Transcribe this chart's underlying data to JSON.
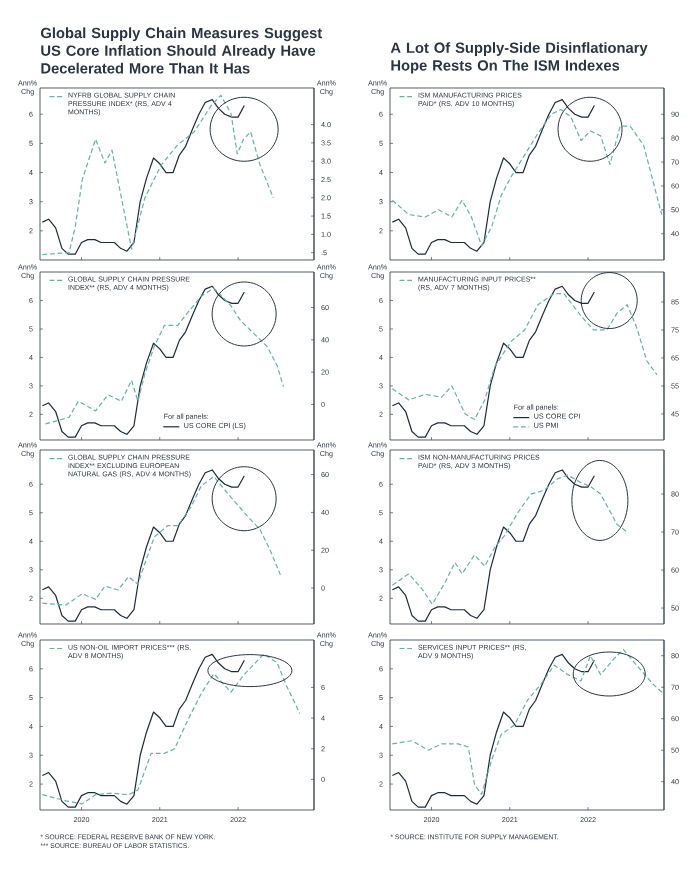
{
  "chart_data": [
    {
      "type": "line",
      "title": "Global Supply Chain Measures Suggest US Core Inflation Should Already Have Decelerated More Than It Has",
      "ylabel": "Ann% Chg",
      "y2label": "Ann% Chg",
      "tick_labels": "y",
      "x": [
        2020.0,
        2020.08,
        2020.17,
        2020.25,
        2020.33,
        2020.42,
        2020.5,
        2020.58,
        2020.67,
        2020.75,
        2020.83,
        2020.92,
        2021.0,
        2021.08,
        2021.17,
        2021.25,
        2021.33,
        2021.42,
        2021.5,
        2021.58,
        2021.67,
        2021.75,
        2021.83,
        2021.92,
        2022.0,
        2022.08,
        2022.17,
        2022.25,
        2022.33,
        2022.42,
        2022.5,
        2022.58
      ],
      "xlim": [
        2019.97,
        2023.47
      ],
      "xticks": [
        {
          "value": 2020.5,
          "label": null
        },
        {
          "value": 2021.5,
          "label": null
        },
        {
          "value": 2022.5,
          "label": null
        }
      ],
      "ylim": [
        1.0,
        6.9
      ],
      "yticks": [
        2,
        3,
        4,
        5,
        6
      ],
      "y2lim": [
        0.3,
        5.0
      ],
      "y2ticks": [
        {
          "value": 0.5,
          "label": ".5"
        },
        {
          "value": 1,
          "label": "1.0"
        },
        {
          "value": 1.5,
          "label": "1.5"
        },
        {
          "value": 2,
          "label": "2.0"
        },
        {
          "value": 2.5,
          "label": "2.5"
        },
        {
          "value": 3,
          "label": "3.0"
        },
        {
          "value": 3.5,
          "label": "3.5"
        },
        {
          "value": 4,
          "label": "4.0"
        }
      ],
      "series": [
        {
          "color": "#1c2b39",
          "line_style": "solid",
          "values": [
            2.3,
            2.4,
            2.1,
            1.4,
            1.2,
            1.2,
            1.6,
            1.7,
            1.7,
            1.6,
            1.6,
            1.6,
            1.4,
            1.3,
            1.6,
            3.0,
            3.8,
            4.5,
            4.3,
            4.0,
            4.0,
            4.6,
            4.9,
            5.5,
            6.0,
            6.4,
            6.5,
            6.2,
            6.0,
            5.9,
            5.9,
            6.3
          ]
        },
        {
          "name": "NYFRB GLOBAL SUPPLY CHAIN PRESSURE INDEX* (RS, ADV 4 MONTHS)",
          "color": "#6aaea6",
          "line_style": "dashed",
          "axis": "y2",
          "x": [
            2020.0,
            2020.34,
            2020.42,
            2020.51,
            2020.68,
            2020.8,
            2020.89,
            2021.01,
            2021.14,
            2021.31,
            2021.52,
            2021.73,
            2021.94,
            2022.15,
            2022.28,
            2022.41,
            2022.49,
            2022.57,
            2022.66,
            2022.78,
            2022.95
          ],
          "values": [
            0.45,
            0.5,
            1.2,
            2.5,
            3.6,
            2.95,
            3.3,
            2.0,
            0.6,
            2.0,
            2.9,
            3.45,
            3.8,
            4.5,
            4.8,
            4.3,
            3.2,
            3.6,
            3.8,
            2.9,
            2.0
          ]
        }
      ]
    },
    {
      "type": "line",
      "ylabel": "Ann% Chg",
      "y2label": "Ann% Chg",
      "tick_labels": "y",
      "legend": "bottom right",
      "legend_title": "For all panels:",
      "x": [
        2020.0,
        2020.08,
        2020.17,
        2020.25,
        2020.33,
        2020.42,
        2020.5,
        2020.58,
        2020.67,
        2020.75,
        2020.83,
        2020.92,
        2021.0,
        2021.08,
        2021.17,
        2021.25,
        2021.33,
        2021.42,
        2021.5,
        2021.58,
        2021.67,
        2021.75,
        2021.83,
        2021.92,
        2022.0,
        2022.08,
        2022.17,
        2022.25,
        2022.33,
        2022.42,
        2022.5,
        2022.58
      ],
      "xlim": [
        2019.97,
        2023.47
      ],
      "xticks": [
        {
          "value": 2020.5,
          "label": null
        },
        {
          "value": 2021.5,
          "label": null
        },
        {
          "value": 2022.5,
          "label": null
        }
      ],
      "ylim": [
        1.1,
        7.0
      ],
      "yticks": [
        2,
        3,
        4,
        5,
        6
      ],
      "y2lim": [
        -22,
        82
      ],
      "y2ticks": [
        0,
        20,
        40,
        60
      ],
      "series": [
        {
          "name": "US CORE CPI (LS)",
          "color": "#1c2b39",
          "line_style": "solid",
          "values": [
            2.3,
            2.4,
            2.1,
            1.4,
            1.2,
            1.2,
            1.6,
            1.7,
            1.7,
            1.6,
            1.6,
            1.6,
            1.4,
            1.3,
            1.6,
            3.0,
            3.8,
            4.5,
            4.3,
            4.0,
            4.0,
            4.6,
            4.9,
            5.5,
            6.0,
            6.4,
            6.5,
            6.2,
            6.0,
            5.9,
            5.9,
            6.3
          ]
        },
        {
          "name": "GLOBAL SUPPLY CHAIN PRESSURE INDEX** (RS, ADV 4 MONTHS)",
          "color": "#6aaea6",
          "line_style": "dashed",
          "axis": "y2",
          "x": [
            2020.04,
            2020.34,
            2020.46,
            2020.68,
            2020.84,
            2021.01,
            2021.14,
            2021.22,
            2021.31,
            2021.43,
            2021.56,
            2021.73,
            2021.86,
            2022.03,
            2022.19,
            2022.41,
            2022.53,
            2022.7,
            2022.87,
            2023.0,
            2023.08
          ],
          "values": [
            -12,
            -8,
            2,
            -4,
            6,
            2,
            15,
            2,
            19,
            36,
            49,
            49,
            57,
            67,
            72,
            61,
            52,
            44,
            36,
            24,
            11
          ]
        }
      ]
    },
    {
      "type": "line",
      "ylabel": "Ann% Chg",
      "y2label": "Ann% Chg",
      "tick_labels": "y",
      "x": [
        2020.0,
        2020.08,
        2020.17,
        2020.25,
        2020.33,
        2020.42,
        2020.5,
        2020.58,
        2020.67,
        2020.75,
        2020.83,
        2020.92,
        2021.0,
        2021.08,
        2021.17,
        2021.25,
        2021.33,
        2021.42,
        2021.5,
        2021.58,
        2021.67,
        2021.75,
        2021.83,
        2021.92,
        2022.0,
        2022.08,
        2022.17,
        2022.25,
        2022.33,
        2022.42,
        2022.5,
        2022.58
      ],
      "xlim": [
        2019.97,
        2023.47
      ],
      "xticks": [
        {
          "value": 2020.5,
          "label": null
        },
        {
          "value": 2021.5,
          "label": null
        },
        {
          "value": 2022.5,
          "label": null
        }
      ],
      "ylim": [
        1.1,
        7.2
      ],
      "yticks": [
        2,
        3,
        4,
        5,
        6
      ],
      "y2lim": [
        -19,
        73
      ],
      "y2ticks": [
        0,
        20,
        40,
        60
      ],
      "series": [
        {
          "color": "#1c2b39",
          "line_style": "solid",
          "values": [
            2.3,
            2.4,
            2.1,
            1.4,
            1.2,
            1.2,
            1.6,
            1.7,
            1.7,
            1.6,
            1.6,
            1.6,
            1.4,
            1.3,
            1.6,
            3.0,
            3.8,
            4.5,
            4.3,
            4.0,
            4.0,
            4.6,
            4.9,
            5.5,
            6.0,
            6.4,
            6.5,
            6.2,
            6.0,
            5.9,
            5.9,
            6.3
          ]
        },
        {
          "name": "GLOBAL SUPPLY CHAIN PRESSURE INDEX** EXCLUDING EUROPEAN NATURAL GAS (RS, ADV 4 MONTHS)",
          "color": "#6aaea6",
          "line_style": "dashed",
          "axis": "y2",
          "x": [
            2020.0,
            2020.3,
            2020.51,
            2020.68,
            2020.8,
            2020.97,
            2021.1,
            2021.22,
            2021.31,
            2021.43,
            2021.6,
            2021.73,
            2021.9,
            2022.03,
            2022.19,
            2022.41,
            2022.62,
            2022.78,
            2022.91,
            2023.04
          ],
          "values": [
            -8,
            -9,
            -3,
            -6,
            1,
            -1,
            6,
            2,
            13,
            27,
            33,
            33,
            43,
            54,
            59,
            48,
            38,
            31,
            20,
            7
          ]
        }
      ]
    },
    {
      "type": "line",
      "ylabel": "Ann% Chg",
      "y2label": "Ann% Chg",
      "annotations": [
        "* SOURCE: FEDERAL RESERVE BANK OF NEW YORK.",
        "*** SOURCE: BUREAU OF LABOR STATISTICS."
      ],
      "x": [
        2020.0,
        2020.08,
        2020.17,
        2020.25,
        2020.33,
        2020.42,
        2020.5,
        2020.58,
        2020.67,
        2020.75,
        2020.83,
        2020.92,
        2021.0,
        2021.08,
        2021.17,
        2021.25,
        2021.33,
        2021.42,
        2021.5,
        2021.58,
        2021.67,
        2021.75,
        2021.83,
        2021.92,
        2022.0,
        2022.08,
        2022.17,
        2022.25,
        2022.33,
        2022.42,
        2022.5,
        2022.58
      ],
      "xlim": [
        2019.97,
        2023.47
      ],
      "xticks": [
        {
          "value": 2020.5,
          "label": "2020"
        },
        {
          "value": 2021.5,
          "label": "2021"
        },
        {
          "value": 2022.5,
          "label": "2022"
        }
      ],
      "ylim": [
        1.1,
        7.0
      ],
      "yticks": [
        2,
        3,
        4,
        5,
        6
      ],
      "y2lim": [
        -2,
        9.1
      ],
      "y2ticks": [
        0,
        2,
        4,
        6
      ],
      "series": [
        {
          "color": "#1c2b39",
          "line_style": "solid",
          "values": [
            2.3,
            2.4,
            2.1,
            1.4,
            1.2,
            1.2,
            1.6,
            1.7,
            1.7,
            1.6,
            1.6,
            1.6,
            1.4,
            1.3,
            1.6,
            3.0,
            3.8,
            4.5,
            4.3,
            4.0,
            4.0,
            4.6,
            4.9,
            5.5,
            6.0,
            6.4,
            6.5,
            6.2,
            6.0,
            5.9,
            5.9,
            6.3
          ]
        },
        {
          "name": "US NON-OIL IMPORT PRICES*** (RS, ADV 8 MONTHS)",
          "color": "#6aaea6",
          "line_style": "dashed",
          "axis": "y2",
          "x": [
            2020.0,
            2020.3,
            2020.51,
            2020.68,
            2020.89,
            2021.1,
            2021.22,
            2021.39,
            2021.56,
            2021.69,
            2021.86,
            2022.03,
            2022.19,
            2022.41,
            2022.57,
            2022.83,
            2023.0,
            2023.12,
            2023.29
          ],
          "values": [
            -1.0,
            -1.4,
            -1.6,
            -1.0,
            -0.9,
            -1.0,
            -0.7,
            1.7,
            1.7,
            2.0,
            3.9,
            5.6,
            6.9,
            5.7,
            6.8,
            8.2,
            7.6,
            6.1,
            4.3
          ]
        }
      ]
    },
    {
      "type": "line",
      "title": "A Lot Of Supply-Side Disinflationary Hope Rests On The ISM Indexes",
      "ylabel": "Ann% Chg",
      "tick_labels": "y",
      "x": [
        2020.0,
        2020.08,
        2020.17,
        2020.25,
        2020.33,
        2020.42,
        2020.5,
        2020.58,
        2020.67,
        2020.75,
        2020.83,
        2020.92,
        2021.0,
        2021.08,
        2021.17,
        2021.25,
        2021.33,
        2021.42,
        2021.5,
        2021.58,
        2021.67,
        2021.75,
        2021.83,
        2021.92,
        2022.0,
        2022.08,
        2022.17,
        2022.25,
        2022.33,
        2022.42,
        2022.5,
        2022.58
      ],
      "xlim": [
        2019.97,
        2023.47
      ],
      "xticks": [
        {
          "value": 2020.5,
          "label": null
        },
        {
          "value": 2021.5,
          "label": null
        },
        {
          "value": 2022.5,
          "label": null
        }
      ],
      "ylim": [
        1.0,
        6.9
      ],
      "yticks": [
        2,
        3,
        4,
        5,
        6
      ],
      "y2lim": [
        29,
        101
      ],
      "y2ticks": [
        40,
        50,
        60,
        70,
        80,
        90
      ],
      "series": [
        {
          "color": "#1c2b39",
          "line_style": "solid",
          "values": [
            2.3,
            2.4,
            2.1,
            1.4,
            1.2,
            1.2,
            1.6,
            1.7,
            1.7,
            1.6,
            1.6,
            1.6,
            1.4,
            1.3,
            1.6,
            3.0,
            3.8,
            4.5,
            4.3,
            4.0,
            4.0,
            4.6,
            4.9,
            5.5,
            6.0,
            6.4,
            6.5,
            6.2,
            6.0,
            5.9,
            5.9,
            6.3
          ]
        },
        {
          "name": "ISM MANUFACTURING PRICES PAID* (RS, ADV 10 MONTHS)",
          "color": "#6aaea6",
          "line_style": "dashed",
          "axis": "y2",
          "x": [
            2020.0,
            2020.21,
            2020.42,
            2020.59,
            2020.76,
            2020.89,
            2021.01,
            2021.14,
            2021.27,
            2021.39,
            2021.52,
            2021.69,
            2021.86,
            2022.03,
            2022.15,
            2022.28,
            2022.41,
            2022.53,
            2022.66,
            2022.78,
            2022.91,
            2023.04,
            2023.21,
            2023.33,
            2023.44
          ],
          "values": [
            54,
            48,
            47,
            50,
            47,
            54,
            47,
            35,
            43,
            56,
            64,
            73,
            82,
            90,
            92,
            89,
            79,
            83,
            81,
            69,
            85,
            85,
            77,
            62,
            48
          ]
        }
      ]
    },
    {
      "type": "line",
      "ylabel": "Ann% Chg",
      "tick_labels": "y",
      "legend": "bottom right",
      "legend_title": "For all panels:",
      "annotations": [
        "US PMI"
      ],
      "x": [
        2020.0,
        2020.08,
        2020.17,
        2020.25,
        2020.33,
        2020.42,
        2020.5,
        2020.58,
        2020.67,
        2020.75,
        2020.83,
        2020.92,
        2021.0,
        2021.08,
        2021.17,
        2021.25,
        2021.33,
        2021.42,
        2021.5,
        2021.58,
        2021.67,
        2021.75,
        2021.83,
        2021.92,
        2022.0,
        2022.08,
        2022.17,
        2022.25,
        2022.33,
        2022.42,
        2022.5,
        2022.58
      ],
      "xlim": [
        2019.97,
        2023.47
      ],
      "xticks": [
        {
          "value": 2020.5,
          "label": null
        },
        {
          "value": 2021.5,
          "label": null
        },
        {
          "value": 2022.5,
          "label": null
        }
      ],
      "ylim": [
        1.1,
        7.0
      ],
      "yticks": [
        2,
        3,
        4,
        5,
        6
      ],
      "y2lim": [
        35.7,
        95.7
      ],
      "y2ticks": [
        45,
        55,
        65,
        75,
        85
      ],
      "series": [
        {
          "name": "US CORE CPI",
          "color": "#1c2b39",
          "line_style": "solid",
          "values": [
            2.3,
            2.4,
            2.1,
            1.4,
            1.2,
            1.2,
            1.6,
            1.7,
            1.7,
            1.6,
            1.6,
            1.6,
            1.4,
            1.3,
            1.6,
            3.0,
            3.8,
            4.5,
            4.3,
            4.0,
            4.0,
            4.6,
            4.9,
            5.5,
            6.0,
            6.4,
            6.5,
            6.2,
            6.0,
            5.9,
            5.9,
            6.3
          ]
        },
        {
          "name": "MANUFACTURING INPUT PRICES** (RS, ADV 7 MONTHS)",
          "color": "#6aaea6",
          "line_style": "dashed",
          "axis": "y2",
          "x": [
            2020.0,
            2020.21,
            2020.42,
            2020.63,
            2020.76,
            2020.93,
            2021.05,
            2021.18,
            2021.31,
            2021.52,
            2021.69,
            2021.86,
            2022.07,
            2022.19,
            2022.41,
            2022.57,
            2022.74,
            2022.87,
            2023.0,
            2023.12,
            2023.25,
            2023.38
          ],
          "values": [
            54,
            50,
            52,
            51,
            55,
            45,
            43,
            50,
            62,
            71,
            75,
            84,
            88,
            88,
            80,
            75,
            75,
            81,
            84,
            76,
            64,
            59
          ]
        }
      ]
    },
    {
      "type": "line",
      "ylabel": "Ann% Chg",
      "tick_labels": "y",
      "x": [
        2020.0,
        2020.08,
        2020.17,
        2020.25,
        2020.33,
        2020.42,
        2020.5,
        2020.58,
        2020.67,
        2020.75,
        2020.83,
        2020.92,
        2021.0,
        2021.08,
        2021.17,
        2021.25,
        2021.33,
        2021.42,
        2021.5,
        2021.58,
        2021.67,
        2021.75,
        2021.83,
        2021.92,
        2022.0,
        2022.08,
        2022.17,
        2022.25,
        2022.33,
        2022.42,
        2022.5,
        2022.58
      ],
      "xlim": [
        2019.97,
        2023.47
      ],
      "xticks": [
        {
          "value": 2020.5,
          "label": null
        },
        {
          "value": 2021.5,
          "label": null
        },
        {
          "value": 2022.5,
          "label": null
        }
      ],
      "ylim": [
        1.1,
        7.2
      ],
      "yticks": [
        2,
        3,
        4,
        5,
        6
      ],
      "y2lim": [
        45.8,
        91.6
      ],
      "y2ticks": [
        50,
        60,
        70,
        80
      ],
      "series": [
        {
          "color": "#1c2b39",
          "line_style": "solid",
          "values": [
            2.3,
            2.4,
            2.1,
            1.4,
            1.2,
            1.2,
            1.6,
            1.7,
            1.7,
            1.6,
            1.6,
            1.6,
            1.4,
            1.3,
            1.6,
            3.0,
            3.8,
            4.5,
            4.3,
            4.0,
            4.0,
            4.6,
            4.9,
            5.5,
            6.0,
            6.4,
            6.5,
            6.2,
            6.0,
            5.9,
            5.9,
            6.3
          ]
        },
        {
          "name": "ISM NON-MANUFACTURING PRICES PAID* (RS, ADV 3 MONTHS)",
          "color": "#6aaea6",
          "line_style": "dashed",
          "axis": "y2",
          "x": [
            2020.0,
            2020.21,
            2020.38,
            2020.51,
            2020.68,
            2020.8,
            2020.89,
            2021.05,
            2021.18,
            2021.31,
            2021.43,
            2021.6,
            2021.77,
            2021.94,
            2022.11,
            2022.24,
            2022.41,
            2022.53,
            2022.66,
            2022.74,
            2022.87,
            2023.0
          ],
          "values": [
            56,
            59,
            55,
            51,
            57,
            62,
            59,
            64,
            61,
            66,
            69,
            75,
            80,
            81,
            84,
            85,
            83,
            82,
            80,
            77,
            72,
            70
          ]
        }
      ]
    },
    {
      "type": "line",
      "ylabel": "Ann% Chg",
      "annotations": [
        "* SOURCE: INSTITUTE FOR SUPPLY MANAGEMENT."
      ],
      "x": [
        2020.0,
        2020.08,
        2020.17,
        2020.25,
        2020.33,
        2020.42,
        2020.5,
        2020.58,
        2020.67,
        2020.75,
        2020.83,
        2020.92,
        2021.0,
        2021.08,
        2021.17,
        2021.25,
        2021.33,
        2021.42,
        2021.5,
        2021.58,
        2021.67,
        2021.75,
        2021.83,
        2021.92,
        2022.0,
        2022.08,
        2022.17,
        2022.25,
        2022.33,
        2022.42,
        2022.5,
        2022.58
      ],
      "xlim": [
        2019.97,
        2023.47
      ],
      "xticks": [
        {
          "value": 2020.5,
          "label": "2020"
        },
        {
          "value": 2021.5,
          "label": "2021"
        },
        {
          "value": 2022.5,
          "label": "2022"
        }
      ],
      "ylim": [
        1.1,
        7.0
      ],
      "yticks": [
        2,
        3,
        4,
        5,
        6
      ],
      "y2lim": [
        31,
        85
      ],
      "y2ticks": [
        40,
        50,
        60,
        70,
        80
      ],
      "series": [
        {
          "color": "#1c2b39",
          "line_style": "solid",
          "values": [
            2.3,
            2.4,
            2.1,
            1.4,
            1.2,
            1.2,
            1.6,
            1.7,
            1.7,
            1.6,
            1.6,
            1.6,
            1.4,
            1.3,
            1.6,
            3.0,
            3.8,
            4.5,
            4.3,
            4.0,
            4.0,
            4.6,
            4.9,
            5.5,
            6.0,
            6.4,
            6.5,
            6.2,
            6.0,
            5.9,
            5.9,
            6.3
          ]
        },
        {
          "name": "SERVICES INPUT PRICES** (RS, ADV 9 MONTHS)",
          "color": "#6aaea6",
          "line_style": "dashed",
          "axis": "y2",
          "x": [
            2020.0,
            2020.25,
            2020.46,
            2020.63,
            2020.84,
            2020.97,
            2021.05,
            2021.14,
            2021.27,
            2021.39,
            2021.56,
            2021.73,
            2021.9,
            2022.07,
            2022.24,
            2022.41,
            2022.53,
            2022.66,
            2022.83,
            2022.95,
            2023.12,
            2023.33,
            2023.46
          ],
          "values": [
            52,
            53,
            50,
            52,
            52,
            51,
            39,
            36,
            47,
            55,
            58,
            66,
            71,
            77,
            74,
            72,
            80,
            74,
            79,
            82,
            77,
            71,
            68
          ]
        }
      ]
    }
  ]
}
